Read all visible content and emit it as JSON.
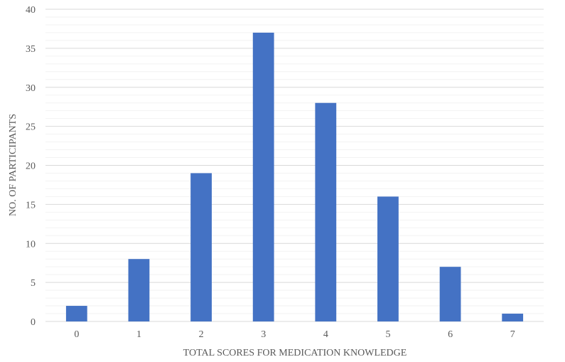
{
  "chart_data": {
    "type": "bar",
    "categories": [
      "0",
      "1",
      "2",
      "3",
      "4",
      "5",
      "6",
      "7"
    ],
    "values": [
      2,
      8,
      19,
      37,
      28,
      16,
      7,
      1
    ],
    "xlabel": "TOTAL SCORES FOR MEDICATION KNOWLEDGE",
    "ylabel": "NO. OF PARTICIPANTS",
    "ylim": [
      0,
      40
    ],
    "yticks": [
      0,
      5,
      10,
      15,
      20,
      25,
      30,
      35,
      40
    ],
    "major_step": 5,
    "minor_step": 1,
    "grid": true,
    "legend": "none",
    "colors": {
      "bar": "#4472C4",
      "major_grid": "#D9D9D9",
      "minor_grid": "#F2F2F2",
      "axis_line": "#D9D9D9"
    }
  }
}
